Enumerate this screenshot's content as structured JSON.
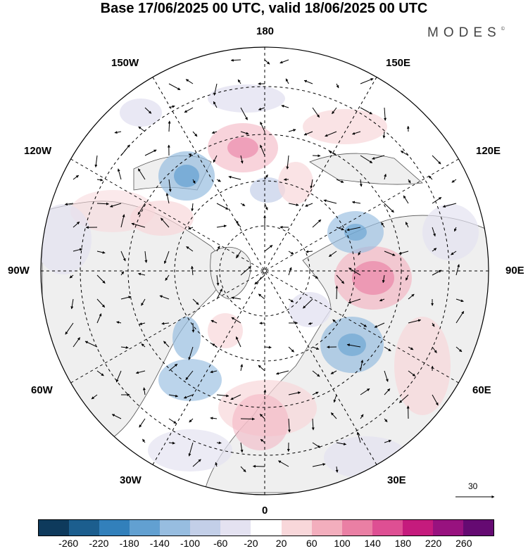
{
  "title": "Base 17/06/2025 00 UTC, valid 18/06/2025 00 UTC",
  "brand": "MODES",
  "brand_mark": "©",
  "map": {
    "projection": "north polar stereographic",
    "longitude_labels": {
      "top": "180",
      "bottom": "0",
      "left": "90W",
      "right": "90E",
      "top_left": "150W",
      "top_right": "150E",
      "upper_left": "120W",
      "upper_right": "120E",
      "lower_left": "60W",
      "lower_right": "60E",
      "bottom_left": "30W",
      "bottom_right": "30E"
    },
    "wind_vector_reference": "30",
    "colors": {
      "land": "#efefef",
      "ocean": "#ffffff",
      "coast": "#555555",
      "grid": "#000000"
    }
  },
  "colorbar": {
    "labels": [
      "-260",
      "-220",
      "-180",
      "-140",
      "-100",
      "-60",
      "-20",
      "20",
      "60",
      "100",
      "140",
      "180",
      "220",
      "260"
    ],
    "colors": [
      "#0e3a5c",
      "#1c5e8e",
      "#3280bb",
      "#62a0d1",
      "#97bde0",
      "#c3cfe8",
      "#e4e2f1",
      "#ffffff",
      "#f8d7da",
      "#f3aebd",
      "#ea7fa4",
      "#de4f93",
      "#c51b7d",
      "#98127f",
      "#650a72"
    ]
  }
}
